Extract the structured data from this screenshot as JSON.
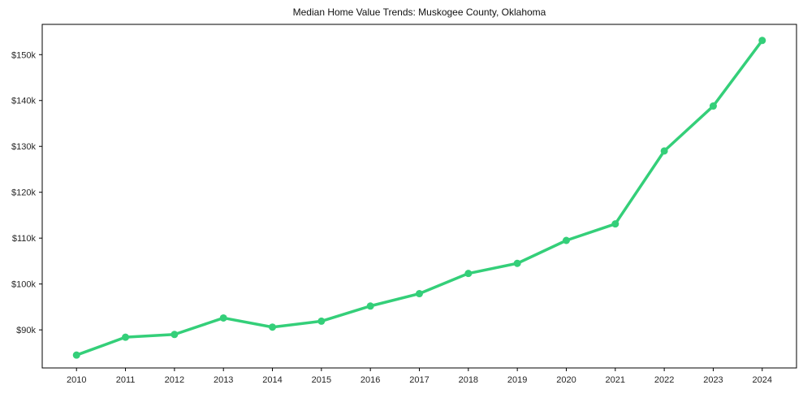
{
  "chart_data": {
    "type": "line",
    "title": "Median Home Value Trends: Muskogee County, Oklahoma",
    "xlabel": "",
    "ylabel": "",
    "x": [
      2010,
      2011,
      2012,
      2013,
      2014,
      2015,
      2016,
      2017,
      2018,
      2019,
      2020,
      2021,
      2022,
      2023,
      2024
    ],
    "x_tick_labels": [
      "2010",
      "2011",
      "2012",
      "2013",
      "2014",
      "2015",
      "2016",
      "2017",
      "2018",
      "2019",
      "2020",
      "2021",
      "2022",
      "2023",
      "2024"
    ],
    "series": [
      {
        "name": "Median Home Value",
        "values": [
          84500,
          88400,
          89000,
          92600,
          90600,
          91900,
          95200,
          97900,
          102300,
          104500,
          109500,
          113100,
          129000,
          138800,
          153100
        ]
      }
    ],
    "y_ticks": [
      {
        "value": 90000,
        "label": "$90k"
      },
      {
        "value": 100000,
        "label": "$100k"
      },
      {
        "value": 110000,
        "label": "$110k"
      },
      {
        "value": 120000,
        "label": "$120k"
      },
      {
        "value": 130000,
        "label": "$130k"
      },
      {
        "value": 140000,
        "label": "$140k"
      },
      {
        "value": 150000,
        "label": "$150k"
      }
    ],
    "xlim": [
      2009.3,
      2024.7
    ],
    "ylim": [
      81700,
      156600
    ],
    "grid": false,
    "legend": "none",
    "colors": {
      "line": "#34cf79",
      "marker": "#34cf79",
      "spine": "#000000",
      "tick_text": "#262626",
      "title_text": "#111111",
      "background": "#ffffff"
    }
  }
}
